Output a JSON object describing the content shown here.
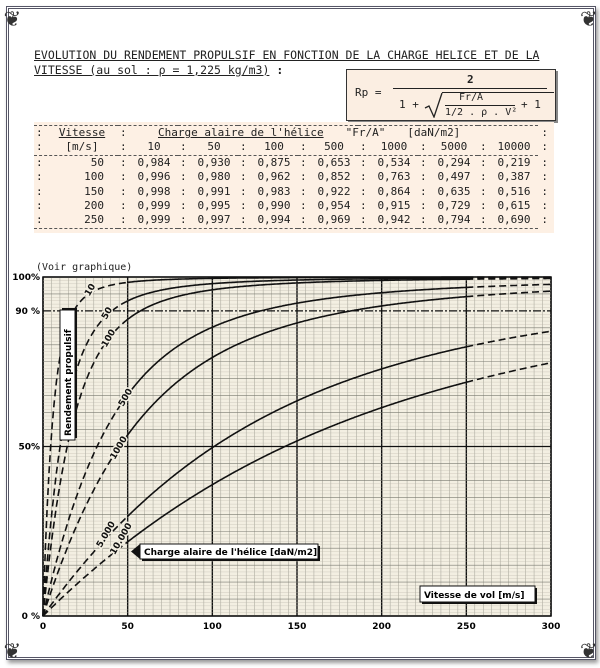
{
  "title_line1": "EVOLUTION DU RENDEMENT PROPULSIF EN FONCTION DE LA CHARGE HELICE ET DE LA",
  "title_line2": "VITESSE (au sol : ρ = 1,225 kg/m3)",
  "title_colon": " :",
  "formula": {
    "lhs": "Rp =",
    "numerator": "2",
    "denominator_left": "1 +",
    "inner_num": "Fr/A",
    "inner_den": "1/2 . ρ . V²",
    "denominator_right": "+ 1"
  },
  "table": {
    "header_col1_line1": "Vitesse",
    "header_col1_line2": "[m/s]",
    "header_group": "Charge alaire de l'hélice",
    "header_group_symbol": "\"Fr/A\"",
    "header_group_unit": "[daN/m2]",
    "charges": [
      "10",
      "50",
      "100",
      "500",
      "1000",
      "5000",
      "10000"
    ],
    "rows": [
      {
        "v": "50",
        "values": [
          "0,984",
          "0,930",
          "0,875",
          "0,653",
          "0,534",
          "0,294",
          "0,219"
        ]
      },
      {
        "v": "100",
        "values": [
          "0,996",
          "0,980",
          "0,962",
          "0,852",
          "0,763",
          "0,497",
          "0,387"
        ]
      },
      {
        "v": "150",
        "values": [
          "0,998",
          "0,991",
          "0,983",
          "0,922",
          "0,864",
          "0,635",
          "0,516"
        ]
      },
      {
        "v": "200",
        "values": [
          "0,999",
          "0,995",
          "0,990",
          "0,954",
          "0,915",
          "0,729",
          "0,615"
        ]
      },
      {
        "v": "250",
        "values": [
          "0,999",
          "0,997",
          "0,994",
          "0,969",
          "0,942",
          "0,794",
          "0,690"
        ]
      }
    ]
  },
  "note": "(Voir graphique)",
  "chart_data": {
    "type": "line",
    "ylabel": "Rendement propulsif",
    "xlabel": "Vitesse de vol  [m/s]",
    "legend_label": "Charge alaire de l'hélice  [daN/m2]",
    "xlim": [
      0,
      300
    ],
    "ylim": [
      0,
      100
    ],
    "x_ticks": [
      "0",
      "50",
      "100",
      "150",
      "200",
      "250",
      "300"
    ],
    "y_ticks": [
      {
        "v": 0,
        "label": "0 %"
      },
      {
        "v": 50,
        "label": "50%"
      },
      {
        "v": 90,
        "label": "90 %"
      },
      {
        "v": 100,
        "label": "100%"
      }
    ],
    "grid": true,
    "air_density": 1.225,
    "series": [
      {
        "name": "10",
        "charge": 10,
        "points": [
          [
            0,
            0
          ],
          [
            50,
            98.4
          ],
          [
            100,
            99.6
          ],
          [
            150,
            99.8
          ],
          [
            200,
            99.9
          ],
          [
            250,
            99.9
          ]
        ]
      },
      {
        "name": "50",
        "charge": 50,
        "points": [
          [
            0,
            0
          ],
          [
            50,
            93.0
          ],
          [
            100,
            98.0
          ],
          [
            150,
            99.1
          ],
          [
            200,
            99.5
          ],
          [
            250,
            99.7
          ]
        ]
      },
      {
        "name": "100",
        "charge": 100,
        "points": [
          [
            0,
            0
          ],
          [
            50,
            87.5
          ],
          [
            100,
            96.2
          ],
          [
            150,
            98.3
          ],
          [
            200,
            99.0
          ],
          [
            250,
            99.4
          ]
        ]
      },
      {
        "name": "500",
        "charge": 500,
        "points": [
          [
            0,
            0
          ],
          [
            50,
            65.3
          ],
          [
            100,
            85.2
          ],
          [
            150,
            92.2
          ],
          [
            200,
            95.4
          ],
          [
            250,
            96.9
          ]
        ]
      },
      {
        "name": "1000",
        "charge": 1000,
        "points": [
          [
            0,
            0
          ],
          [
            50,
            53.4
          ],
          [
            100,
            76.3
          ],
          [
            150,
            86.4
          ],
          [
            200,
            91.5
          ],
          [
            250,
            94.2
          ]
        ]
      },
      {
        "name": "5.000",
        "charge": 5000,
        "points": [
          [
            0,
            0
          ],
          [
            50,
            29.4
          ],
          [
            100,
            49.7
          ],
          [
            150,
            63.5
          ],
          [
            200,
            72.9
          ],
          [
            250,
            79.4
          ]
        ]
      },
      {
        "name": "10.000",
        "charge": 10000,
        "points": [
          [
            0,
            0
          ],
          [
            50,
            21.9
          ],
          [
            100,
            38.7
          ],
          [
            150,
            51.6
          ],
          [
            200,
            61.5
          ],
          [
            250,
            69.0
          ]
        ]
      }
    ],
    "paper_color": "#f3efe2",
    "ink_color": "#111111"
  }
}
